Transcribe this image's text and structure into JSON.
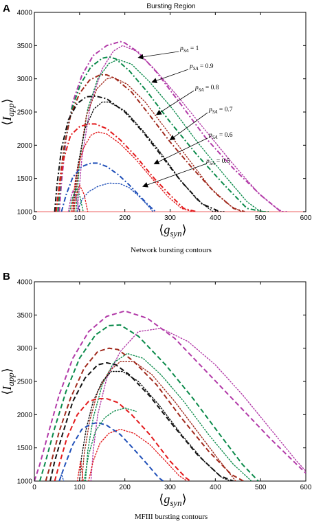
{
  "figure": {
    "panel_a_letter": "A",
    "panel_b_letter": "B"
  },
  "chart_data": [
    {
      "type": "line",
      "panel": "A",
      "title": "Bursting Region",
      "xlabel": "⟨g_syn⟩",
      "ylabel": "⟨I_app⟩",
      "caption": "Network bursting contours",
      "xlim": [
        0,
        600
      ],
      "ylim": [
        1000,
        4000
      ],
      "xticks": [
        "0",
        "100",
        "200",
        "300",
        "400",
        "500",
        "600"
      ],
      "yticks": [
        "1000",
        "1500",
        "2000",
        "2500",
        "3000",
        "3500",
        "4000"
      ],
      "grid": false,
      "baseline": {
        "y": 1000,
        "color": "#f08080"
      },
      "annotations": [
        {
          "text": "p_SA = 1",
          "prefix": "p",
          "sub": "SA",
          "value": " = 1",
          "target": {
            "x": 230,
            "y": 3320
          }
        },
        {
          "text": "p_SA = 0.9",
          "prefix": "p",
          "sub": "SA",
          "value": " = 0.9",
          "target": {
            "x": 260,
            "y": 2950
          }
        },
        {
          "text": "p_SA = 0.8",
          "prefix": "p",
          "sub": "SA",
          "value": " = 0.8",
          "target": {
            "x": 270,
            "y": 2460
          }
        },
        {
          "text": "p_SA = 0.7",
          "prefix": "p",
          "sub": "SA",
          "value": " = 0.7",
          "target": {
            "x": 300,
            "y": 2080
          }
        },
        {
          "text": "p_SA = 0.6",
          "prefix": "p",
          "sub": "SA",
          "value": " = 0.6",
          "target": {
            "x": 265,
            "y": 1720
          }
        },
        {
          "text": "p_SA = 0.5",
          "prefix": "p",
          "sub": "SA",
          "value": " = 0.5",
          "target": {
            "x": 240,
            "y": 1380
          }
        }
      ],
      "series": [
        {
          "color": "#b23aa8",
          "style": "dashdot",
          "x": [
            55,
            60,
            70,
            85,
            105,
            130,
            160,
            190,
            200,
            230,
            270,
            320,
            380,
            440,
            500,
            545,
            558
          ],
          "y": [
            1000,
            1450,
            2100,
            2650,
            3050,
            3350,
            3500,
            3560,
            3540,
            3400,
            3100,
            2650,
            2100,
            1650,
            1250,
            1000,
            1000
          ]
        },
        {
          "color": "#b23aa8",
          "style": "dotted",
          "x": [
            95,
            105,
            125,
            150,
            175,
            195,
            225,
            265,
            315,
            375,
            435,
            495,
            530,
            548
          ],
          "y": [
            1000,
            1800,
            2650,
            3150,
            3420,
            3500,
            3420,
            3150,
            2750,
            2250,
            1750,
            1280,
            1080,
            1000
          ]
        },
        {
          "color": "#0a8a4a",
          "style": "dashdot",
          "x": [
            52,
            58,
            68,
            83,
            102,
            125,
            150,
            165,
            180,
            210,
            250,
            300,
            360,
            420,
            470,
            505,
            518
          ],
          "y": [
            1000,
            1450,
            2050,
            2550,
            2920,
            3180,
            3310,
            3330,
            3300,
            3120,
            2800,
            2350,
            1850,
            1400,
            1050,
            1000,
            1000
          ]
        },
        {
          "color": "#0a8a4a",
          "style": "dotted",
          "x": [
            92,
            100,
            118,
            140,
            165,
            185,
            215,
            255,
            305,
            360,
            420,
            470,
            500,
            512
          ],
          "y": [
            1000,
            1750,
            2550,
            3000,
            3230,
            3290,
            3220,
            2950,
            2550,
            2050,
            1550,
            1150,
            1000,
            1000
          ]
        },
        {
          "color": "#a0291c",
          "style": "dashdot",
          "x": [
            48,
            55,
            65,
            80,
            100,
            122,
            145,
            160,
            180,
            215,
            255,
            300,
            350,
            400,
            440,
            465
          ],
          "y": [
            1000,
            1400,
            1950,
            2450,
            2780,
            2980,
            3060,
            3060,
            3000,
            2800,
            2450,
            2050,
            1650,
            1280,
            1050,
            1000
          ]
        },
        {
          "color": "#a0291c",
          "style": "dotted",
          "x": [
            88,
            98,
            115,
            138,
            160,
            175,
            205,
            245,
            290,
            340,
            390,
            435,
            458
          ],
          "y": [
            1000,
            1700,
            2450,
            2850,
            3000,
            3020,
            2920,
            2650,
            2250,
            1800,
            1350,
            1080,
            1000
          ]
        },
        {
          "color": "#111111",
          "style": "dashdot",
          "x": [
            45,
            50,
            60,
            75,
            95,
            115,
            135,
            160,
            200,
            240,
            280,
            325,
            370,
            410
          ],
          "y": [
            1000,
            1400,
            1950,
            2380,
            2630,
            2730,
            2740,
            2700,
            2500,
            2200,
            1850,
            1450,
            1120,
            1000
          ]
        },
        {
          "color": "#111111",
          "style": "dotted",
          "x": [
            85,
            95,
            112,
            132,
            150,
            165,
            200,
            240,
            280,
            320,
            360,
            395,
            420
          ],
          "y": [
            1000,
            1650,
            2250,
            2550,
            2650,
            2650,
            2520,
            2220,
            1880,
            1500,
            1180,
            1000,
            1000
          ]
        },
        {
          "color": "#e31a1c",
          "style": "dashdot",
          "x": [
            48,
            55,
            65,
            80,
            100,
            120,
            135,
            160,
            190,
            225,
            265,
            300,
            330,
            358
          ],
          "y": [
            1000,
            1350,
            1800,
            2150,
            2280,
            2320,
            2320,
            2250,
            2080,
            1830,
            1500,
            1250,
            1050,
            1000
          ]
        },
        {
          "color": "#e31a1c",
          "style": "dotted",
          "x": [
            82,
            92,
            108,
            125,
            140,
            160,
            190,
            225,
            260,
            295,
            325,
            350
          ],
          "y": [
            1000,
            1550,
            1950,
            2150,
            2200,
            2170,
            2020,
            1780,
            1500,
            1230,
            1050,
            1000
          ]
        },
        {
          "color": "#1f4fb8",
          "style": "dashdot",
          "x": [
            60,
            70,
            85,
            105,
            125,
            140,
            160,
            185,
            210,
            235,
            255,
            268
          ],
          "y": [
            1000,
            1250,
            1520,
            1680,
            1730,
            1730,
            1680,
            1560,
            1400,
            1220,
            1080,
            1000
          ]
        },
        {
          "color": "#1f4fb8",
          "style": "dotted",
          "x": [
            95,
            105,
            120,
            140,
            165,
            190,
            210,
            230,
            250,
            262
          ],
          "y": [
            1000,
            1180,
            1300,
            1380,
            1430,
            1420,
            1360,
            1240,
            1100,
            1000
          ]
        },
        {
          "color": "#b23aa8",
          "style": "dotted",
          "x": [
            75,
            80,
            85,
            92,
            100
          ],
          "y": [
            1000,
            1180,
            1320,
            1230,
            1000
          ]
        },
        {
          "color": "#0a8a4a",
          "style": "dotted",
          "x": [
            78,
            84,
            92,
            100,
            108
          ],
          "y": [
            1000,
            1200,
            1350,
            1250,
            1000
          ]
        },
        {
          "color": "#e31a1c",
          "style": "dotted",
          "x": [
            85,
            92,
            100,
            110,
            118
          ],
          "y": [
            1000,
            1230,
            1400,
            1260,
            1000
          ]
        }
      ]
    },
    {
      "type": "line",
      "panel": "B",
      "title": "",
      "xlabel": "⟨g_syn⟩",
      "ylabel": "⟨I_app⟩",
      "caption": "MFIII bursting contours",
      "xlim": [
        0,
        600
      ],
      "ylim": [
        1000,
        4000
      ],
      "xticks": [
        "0",
        "100",
        "200",
        "300",
        "400",
        "500",
        "600"
      ],
      "yticks": [
        "1000",
        "1500",
        "2000",
        "2500",
        "3000",
        "3500",
        "4000"
      ],
      "grid": false,
      "series": [
        {
          "color": "#b23aa8",
          "style": "dashed",
          "x": [
            0,
            12,
            30,
            55,
            85,
            120,
            160,
            200,
            250,
            310,
            380,
            450,
            520,
            580,
            600
          ],
          "y": [
            1000,
            1250,
            1700,
            2300,
            2850,
            3250,
            3480,
            3560,
            3450,
            3150,
            2650,
            2150,
            1650,
            1250,
            1120
          ]
        },
        {
          "color": "#b23aa8",
          "style": "dotted",
          "x": [
            125,
            130,
            140,
            160,
            190,
            230,
            280,
            340,
            400,
            460,
            520,
            580,
            600
          ],
          "y": [
            1000,
            1450,
            2000,
            2550,
            2950,
            3250,
            3300,
            3100,
            2750,
            2300,
            1800,
            1300,
            1150
          ]
        },
        {
          "color": "#0a8a4a",
          "style": "dashed",
          "x": [
            12,
            25,
            45,
            70,
            100,
            135,
            165,
            190,
            230,
            290,
            350,
            410,
            460,
            495
          ],
          "y": [
            1000,
            1300,
            1800,
            2350,
            2850,
            3200,
            3340,
            3350,
            3180,
            2750,
            2250,
            1700,
            1250,
            1000
          ]
        },
        {
          "color": "#0a8a4a",
          "style": "dotted",
          "x": [
            113,
            118,
            130,
            150,
            175,
            205,
            240,
            280,
            330,
            385,
            440,
            480
          ],
          "y": [
            1000,
            1450,
            1950,
            2450,
            2780,
            2920,
            2850,
            2600,
            2200,
            1700,
            1250,
            1000
          ]
        },
        {
          "color": "#a0291c",
          "style": "dashed",
          "x": [
            25,
            38,
            55,
            80,
            110,
            140,
            165,
            185,
            220,
            270,
            325,
            385,
            435,
            462
          ],
          "y": [
            1000,
            1300,
            1750,
            2250,
            2700,
            2950,
            3000,
            2980,
            2800,
            2450,
            1950,
            1450,
            1100,
            1000
          ]
        },
        {
          "color": "#a0291c",
          "style": "dotted",
          "x": [
            105,
            110,
            122,
            140,
            165,
            190,
            220,
            260,
            310,
            360,
            410,
            445
          ],
          "y": [
            1000,
            1400,
            1900,
            2350,
            2650,
            2800,
            2800,
            2600,
            2200,
            1750,
            1300,
            1000
          ]
        },
        {
          "color": "#111111",
          "style": "dashed",
          "x": [
            35,
            45,
            62,
            85,
            112,
            140,
            160,
            180,
            210,
            255,
            305,
            360,
            410,
            440
          ],
          "y": [
            1000,
            1300,
            1700,
            2200,
            2550,
            2750,
            2780,
            2750,
            2600,
            2280,
            1850,
            1400,
            1080,
            1000
          ]
        },
        {
          "color": "#111111",
          "style": "dotted",
          "x": [
            100,
            104,
            115,
            130,
            150,
            170,
            195,
            230,
            275,
            325,
            375,
            415,
            435
          ],
          "y": [
            1000,
            1350,
            1800,
            2200,
            2500,
            2650,
            2650,
            2500,
            2150,
            1700,
            1300,
            1050,
            1000
          ]
        },
        {
          "color": "#e31a1c",
          "style": "dashed",
          "x": [
            45,
            55,
            72,
            95,
            120,
            140,
            160,
            185,
            215,
            255,
            300,
            335,
            345
          ],
          "y": [
            1000,
            1250,
            1650,
            2000,
            2200,
            2240,
            2240,
            2180,
            2000,
            1700,
            1300,
            1050,
            1000
          ]
        },
        {
          "color": "#e31a1c",
          "style": "dotted",
          "x": [
            120,
            130,
            145,
            165,
            190,
            220,
            255,
            290,
            320,
            338
          ],
          "y": [
            1000,
            1300,
            1570,
            1720,
            1780,
            1720,
            1550,
            1300,
            1080,
            1000
          ]
        },
        {
          "color": "#1f4fb8",
          "style": "dashed",
          "x": [
            55,
            68,
            85,
            105,
            125,
            140,
            160,
            190,
            220,
            250,
            275,
            285
          ],
          "y": [
            1000,
            1250,
            1550,
            1780,
            1860,
            1880,
            1840,
            1700,
            1480,
            1250,
            1050,
            1000
          ]
        },
        {
          "color": "#1f4fb8",
          "style": "dotted",
          "x": [
            55,
            60,
            65
          ],
          "y": [
            1000,
            1100,
            1000
          ]
        },
        {
          "color": "#0a8a4a",
          "style": "dotted",
          "x": [
            110,
            120,
            135,
            155,
            175,
            200,
            225
          ],
          "y": [
            1000,
            1400,
            1750,
            1950,
            2050,
            2100,
            2050
          ]
        },
        {
          "color": "#e31a1c",
          "style": "dotted",
          "x": [
            95,
            102,
            108
          ],
          "y": [
            1000,
            1300,
            1000
          ]
        }
      ]
    }
  ]
}
